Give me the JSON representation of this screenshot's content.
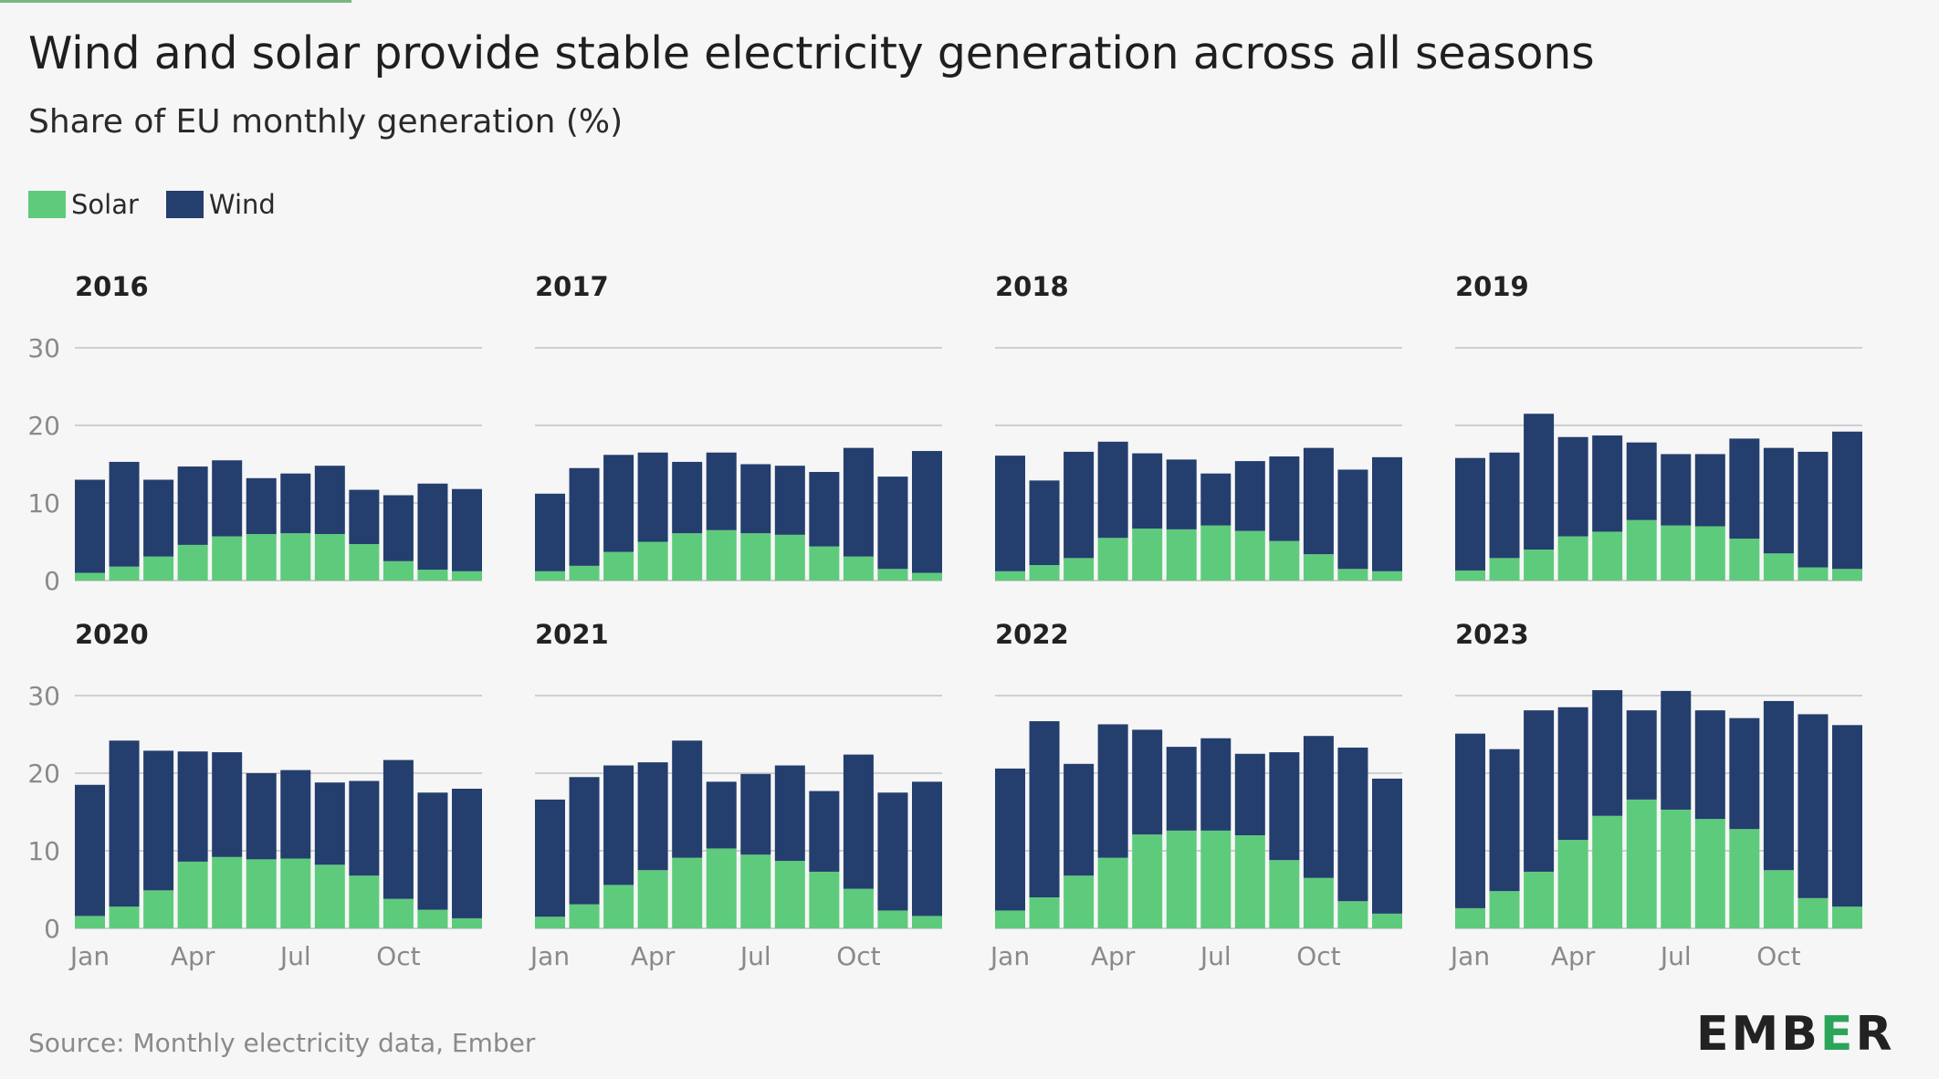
{
  "title": "Wind and solar provide stable electricity generation across all seasons",
  "subtitle": "Share of EU monthly generation (%)",
  "source": "Source: Monthly electricity data, Ember",
  "logo": {
    "left": "EMB",
    "mid": "E",
    "right": "R"
  },
  "colors": {
    "solar": "#5ecb7c",
    "wind": "#243e6e",
    "grid": "#cfcfcf",
    "axis_text": "#8a8a8a"
  },
  "chart_data": {
    "type": "bar",
    "stacked": true,
    "title": "Wind and solar provide stable electricity generation across all seasons",
    "ylabel": "Share of EU monthly generation (%)",
    "ylim": [
      0,
      30
    ],
    "yticks": [
      0,
      10,
      20,
      30
    ],
    "xtick_labels": [
      {
        "month": 1,
        "label": "Jan"
      },
      {
        "month": 4,
        "label": "Apr"
      },
      {
        "month": 7,
        "label": "Jul"
      },
      {
        "month": 10,
        "label": "Oct"
      }
    ],
    "months": [
      1,
      2,
      3,
      4,
      5,
      6,
      7,
      8,
      9,
      10,
      11,
      12
    ],
    "legend": [
      {
        "name": "Solar",
        "color": "#5ecb7c"
      },
      {
        "name": "Wind",
        "color": "#243e6e"
      }
    ],
    "legend_position": "top-left",
    "grid": true,
    "panels": [
      {
        "year": "2016",
        "solar": [
          1.0,
          1.8,
          3.1,
          4.6,
          5.7,
          6.0,
          6.1,
          6.0,
          4.7,
          2.5,
          1.4,
          1.2
        ],
        "wind": [
          12.0,
          13.5,
          9.9,
          10.1,
          9.8,
          7.2,
          7.7,
          8.8,
          7.0,
          8.5,
          11.1,
          10.6
        ]
      },
      {
        "year": "2017",
        "solar": [
          1.2,
          1.9,
          3.7,
          5.0,
          6.1,
          6.5,
          6.1,
          5.9,
          4.4,
          3.1,
          1.5,
          1.0
        ],
        "wind": [
          10.0,
          12.6,
          12.5,
          11.5,
          9.2,
          10.0,
          8.9,
          8.9,
          9.6,
          14.0,
          11.9,
          15.7
        ]
      },
      {
        "year": "2018",
        "solar": [
          1.2,
          2.0,
          2.9,
          5.5,
          6.7,
          6.6,
          7.1,
          6.4,
          5.1,
          3.4,
          1.5,
          1.2
        ],
        "wind": [
          14.9,
          10.9,
          13.7,
          12.4,
          9.7,
          9.0,
          6.7,
          9.0,
          10.9,
          13.7,
          12.8,
          14.7
        ]
      },
      {
        "year": "2019",
        "solar": [
          1.3,
          2.9,
          4.0,
          5.7,
          6.3,
          7.8,
          7.1,
          7.0,
          5.4,
          3.5,
          1.7,
          1.5
        ],
        "wind": [
          14.5,
          13.6,
          17.5,
          12.8,
          12.4,
          10.0,
          9.2,
          9.3,
          12.9,
          13.6,
          14.9,
          17.7
        ]
      },
      {
        "year": "2020",
        "solar": [
          1.6,
          2.8,
          4.9,
          8.6,
          9.2,
          8.9,
          9.0,
          8.2,
          6.8,
          3.8,
          2.4,
          1.3
        ],
        "wind": [
          16.9,
          21.4,
          18.0,
          14.2,
          13.5,
          11.1,
          11.4,
          10.6,
          12.2,
          17.9,
          15.1,
          16.7
        ]
      },
      {
        "year": "2021",
        "solar": [
          1.5,
          3.1,
          5.6,
          7.5,
          9.1,
          10.3,
          9.5,
          8.7,
          7.3,
          5.1,
          2.3,
          1.6
        ],
        "wind": [
          15.1,
          16.4,
          15.4,
          13.9,
          15.1,
          8.6,
          10.4,
          12.3,
          10.4,
          17.3,
          15.2,
          17.3
        ]
      },
      {
        "year": "2022",
        "solar": [
          2.3,
          4.0,
          6.8,
          9.1,
          12.1,
          12.6,
          12.6,
          12.0,
          8.8,
          6.5,
          3.5,
          1.9
        ],
        "wind": [
          18.3,
          22.7,
          14.4,
          17.2,
          13.5,
          10.8,
          11.9,
          10.5,
          13.9,
          18.3,
          19.8,
          17.4
        ]
      },
      {
        "year": "2023",
        "solar": [
          2.6,
          4.8,
          7.3,
          11.4,
          14.5,
          16.6,
          15.3,
          14.1,
          12.8,
          7.5,
          3.9,
          2.8
        ],
        "wind": [
          22.5,
          18.3,
          20.8,
          17.1,
          16.2,
          11.5,
          15.3,
          14.0,
          14.3,
          21.8,
          23.7,
          23.4
        ]
      }
    ]
  }
}
